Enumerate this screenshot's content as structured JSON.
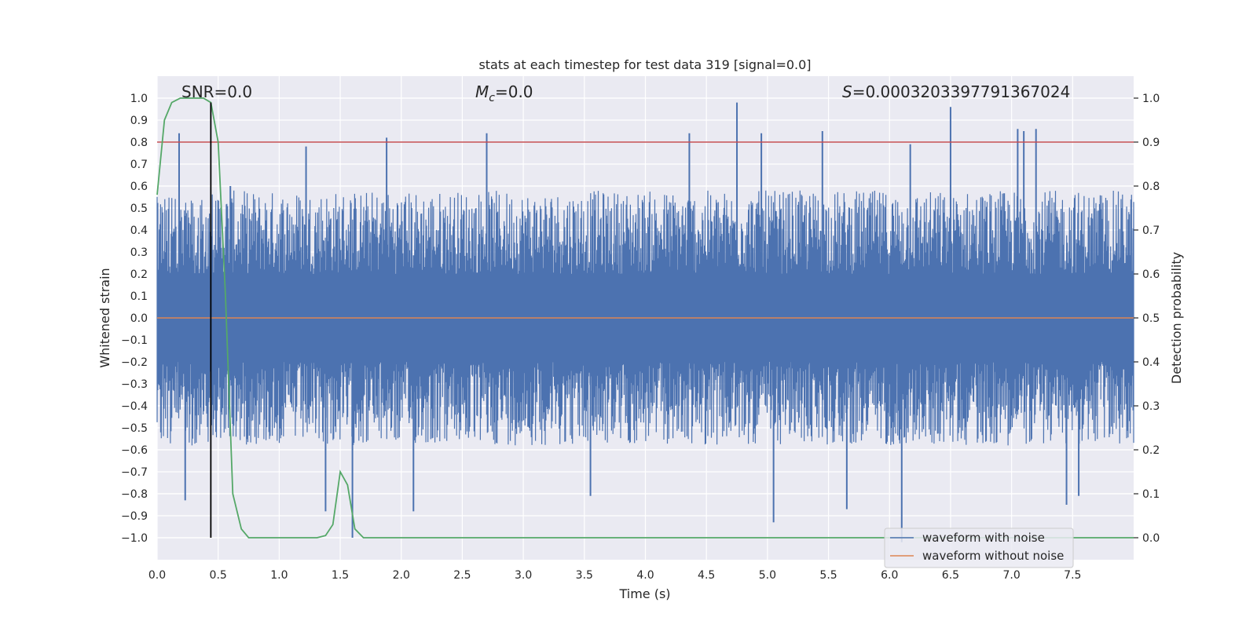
{
  "chart_data": {
    "type": "line",
    "title": "stats at each timestep for test data 319 [signal=0.0]",
    "xlabel": "Time (s)",
    "ylabel": "Whitened strain",
    "y2label": "Detection probability",
    "xlim": [
      0.0,
      8.0
    ],
    "ylim": [
      -1.1,
      1.1
    ],
    "y2lim": [
      -0.05,
      1.05
    ],
    "xticks": [
      "0.0",
      "0.5",
      "1.0",
      "1.5",
      "2.0",
      "2.5",
      "3.0",
      "3.5",
      "4.0",
      "4.5",
      "5.0",
      "5.5",
      "6.0",
      "6.5",
      "7.0",
      "7.5"
    ],
    "xtick_values": [
      0.0,
      0.5,
      1.0,
      1.5,
      2.0,
      2.5,
      3.0,
      3.5,
      4.0,
      4.5,
      5.0,
      5.5,
      6.0,
      6.5,
      7.0,
      7.5
    ],
    "yticks": [
      "1.0",
      "0.9",
      "0.8",
      "0.7",
      "0.6",
      "0.5",
      "0.4",
      "0.3",
      "0.2",
      "0.1",
      "0.0",
      "−0.1",
      "−0.2",
      "−0.3",
      "−0.4",
      "−0.5",
      "−0.6",
      "−0.7",
      "−0.8",
      "−0.9",
      "−1.0"
    ],
    "ytick_values": [
      1.0,
      0.9,
      0.8,
      0.7,
      0.6,
      0.5,
      0.4,
      0.3,
      0.2,
      0.1,
      0.0,
      -0.1,
      -0.2,
      -0.3,
      -0.4,
      -0.5,
      -0.6,
      -0.7,
      -0.8,
      -0.9,
      -1.0
    ],
    "y2ticks": [
      "1.0",
      "0.9",
      "0.8",
      "0.7",
      "0.6",
      "0.5",
      "0.4",
      "0.3",
      "0.2",
      "0.1",
      "0.0"
    ],
    "y2tick_values": [
      1.0,
      0.9,
      0.8,
      0.7,
      0.6,
      0.5,
      0.4,
      0.3,
      0.2,
      0.1,
      0.0
    ],
    "annotations": {
      "snr": "SNR=0.0",
      "mc_symbol": "M",
      "mc_sub": "c",
      "mc_value": "=0.0",
      "s_symbol": "S",
      "s_value": "=0.0003203397791367024"
    },
    "grid": true,
    "legend": {
      "placement": "lower-right",
      "entries": [
        "waveform with noise",
        "waveform without noise"
      ]
    },
    "series": [
      {
        "name": "waveform with noise",
        "color": "#4c72b0",
        "axis": "left",
        "description_values": "dense noise, mostly within [-0.4, 0.6] with spikes up to ~0.98 and down to ~-1.0",
        "spikes": [
          [
            0.18,
            0.84
          ],
          [
            0.6,
            0.6
          ],
          [
            1.22,
            0.78
          ],
          [
            1.88,
            0.82
          ],
          [
            2.7,
            0.84
          ],
          [
            4.75,
            0.98
          ],
          [
            6.5,
            0.96
          ],
          [
            7.05,
            0.86
          ],
          [
            7.1,
            0.85
          ],
          [
            7.2,
            0.86
          ],
          [
            6.17,
            0.79
          ],
          [
            4.36,
            0.84
          ],
          [
            4.95,
            0.84
          ],
          [
            5.45,
            0.85
          ],
          [
            0.23,
            -0.83
          ],
          [
            1.6,
            -1.0
          ],
          [
            6.1,
            -1.02
          ],
          [
            5.05,
            -0.93
          ],
          [
            1.38,
            -0.88
          ],
          [
            2.1,
            -0.88
          ],
          [
            3.55,
            -0.81
          ],
          [
            7.45,
            -0.85
          ],
          [
            7.55,
            -0.81
          ],
          [
            5.65,
            -0.87
          ]
        ]
      },
      {
        "name": "waveform without noise",
        "color": "#dd8452",
        "axis": "left",
        "x": [
          0.0,
          8.0
        ],
        "y": [
          0.0,
          0.0
        ]
      },
      {
        "name": "",
        "color": "#55a868",
        "axis": "right",
        "x": [
          0.0,
          0.06,
          0.12,
          0.19,
          0.25,
          0.31,
          0.38,
          0.44,
          0.5,
          0.56,
          0.62,
          0.69,
          0.75,
          0.81,
          0.88,
          0.94,
          1.0,
          1.06,
          1.12,
          1.19,
          1.25,
          1.31,
          1.38,
          1.44,
          1.5,
          1.56,
          1.62,
          1.69,
          1.75,
          1.81,
          1.88,
          2.0,
          8.0
        ],
        "y": [
          0.78,
          0.95,
          0.99,
          1.0,
          1.0,
          1.0,
          1.0,
          0.99,
          0.9,
          0.55,
          0.1,
          0.02,
          0.0,
          0.0,
          0.0,
          0.0,
          0.0,
          0.0,
          0.0,
          0.0,
          0.0,
          0.0,
          0.005,
          0.03,
          0.15,
          0.12,
          0.02,
          0.0,
          0.0,
          0.0,
          0.0,
          0.0,
          0.0
        ]
      }
    ],
    "threshold_line": {
      "color": "#c44e52",
      "axis": "right",
      "value": 0.9
    },
    "vertical_line": {
      "color": "#000000",
      "x": 0.44,
      "y_from": -1.0,
      "y_to": 0.98
    }
  }
}
